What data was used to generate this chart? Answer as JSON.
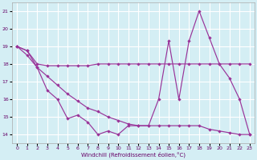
{
  "line1_x": [
    0,
    1,
    2,
    3,
    4,
    5,
    6,
    7,
    8,
    9,
    10,
    11,
    12,
    13,
    14,
    15,
    16,
    17,
    18,
    19,
    20,
    21,
    22,
    23
  ],
  "line1_y": [
    19.0,
    18.75,
    18.0,
    17.9,
    17.9,
    17.9,
    17.9,
    17.9,
    18.0,
    18.0,
    18.0,
    18.0,
    18.0,
    18.0,
    18.0,
    18.0,
    18.0,
    18.0,
    18.0,
    18.0,
    18.0,
    18.0,
    18.0,
    18.0
  ],
  "line2_x": [
    0,
    1,
    2,
    3,
    4,
    5,
    6,
    7,
    8,
    9,
    10,
    11,
    12,
    13,
    14,
    15,
    16,
    17,
    18,
    19,
    20,
    21,
    22,
    23
  ],
  "line2_y": [
    19.0,
    18.75,
    17.8,
    16.5,
    16.0,
    14.9,
    15.1,
    14.7,
    14.0,
    14.2,
    14.0,
    14.5,
    14.5,
    14.5,
    16.0,
    19.3,
    16.0,
    19.3,
    21.0,
    19.5,
    18.0,
    17.2,
    16.0,
    14.0
  ],
  "line3_x": [
    0,
    1,
    2,
    3,
    4,
    5,
    6,
    7,
    8,
    9,
    10,
    11,
    12,
    13,
    14,
    15,
    16,
    17,
    18,
    19,
    20,
    21,
    22,
    23
  ],
  "line3_y": [
    19.0,
    18.5,
    17.8,
    17.3,
    16.8,
    16.3,
    15.9,
    15.5,
    15.3,
    15.0,
    14.8,
    14.6,
    14.5,
    14.5,
    14.5,
    14.5,
    14.5,
    14.5,
    14.5,
    14.3,
    14.2,
    14.1,
    14.0,
    14.0
  ],
  "line_color": "#993399",
  "bg_color": "#d4eef4",
  "grid_color": "#ffffff",
  "xlabel": "Windchill (Refroidissement éolien,°C)",
  "ylim": [
    13.5,
    21.5
  ],
  "xlim": [
    -0.5,
    23.5
  ],
  "yticks": [
    14,
    15,
    16,
    17,
    18,
    19,
    20,
    21
  ],
  "xticks": [
    0,
    1,
    2,
    3,
    4,
    5,
    6,
    7,
    8,
    9,
    10,
    11,
    12,
    13,
    14,
    15,
    16,
    17,
    18,
    19,
    20,
    21,
    22,
    23
  ]
}
